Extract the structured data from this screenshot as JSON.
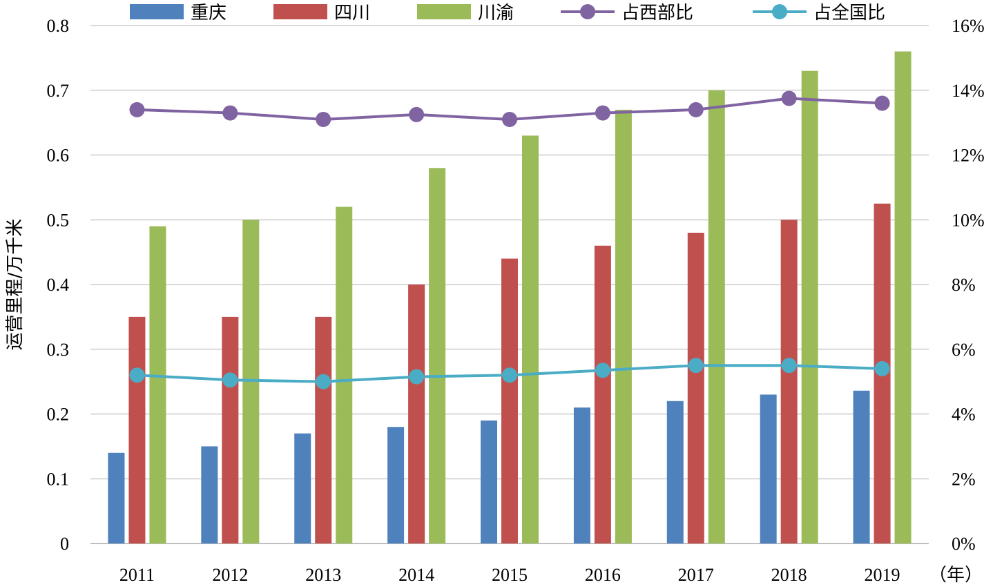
{
  "chart_data": {
    "type": "bar",
    "title": "",
    "ylabel": "运营里程/万千米",
    "xlabel": "（年）",
    "categories": [
      "2011",
      "2012",
      "2013",
      "2014",
      "2015",
      "2016",
      "2017",
      "2018",
      "2019"
    ],
    "ylim": [
      0,
      0.8
    ],
    "y_ticks": [
      "0",
      "0.1",
      "0.2",
      "0.3",
      "0.4",
      "0.5",
      "0.6",
      "0.7",
      "0.8"
    ],
    "y2lim": [
      0,
      16
    ],
    "y2_ticks": [
      "0%",
      "2%",
      "4%",
      "6%",
      "8%",
      "10%",
      "12%",
      "14%",
      "16%"
    ],
    "grid": true,
    "legend_position": "top",
    "series": [
      {
        "name": "重庆",
        "type": "bar",
        "axis": "left",
        "color": "#4F81BD",
        "values": [
          0.14,
          0.15,
          0.17,
          0.18,
          0.19,
          0.21,
          0.22,
          0.23,
          0.236
        ]
      },
      {
        "name": "四川",
        "type": "bar",
        "axis": "left",
        "color": "#C0504D",
        "values": [
          0.35,
          0.35,
          0.35,
          0.4,
          0.44,
          0.46,
          0.48,
          0.5,
          0.525
        ]
      },
      {
        "name": "川渝",
        "type": "bar",
        "axis": "left",
        "color": "#9BBB59",
        "values": [
          0.49,
          0.5,
          0.52,
          0.58,
          0.63,
          0.67,
          0.7,
          0.73,
          0.76
        ]
      },
      {
        "name": "占西部比",
        "type": "line",
        "axis": "right",
        "color": "#8064A2",
        "values": [
          13.4,
          13.3,
          13.1,
          13.25,
          13.1,
          13.3,
          13.4,
          13.75,
          13.6
        ]
      },
      {
        "name": "占全国比",
        "type": "line",
        "axis": "right",
        "color": "#4BACC6",
        "values": [
          5.2,
          5.05,
          5.0,
          5.15,
          5.2,
          5.35,
          5.5,
          5.5,
          5.4
        ]
      }
    ]
  }
}
